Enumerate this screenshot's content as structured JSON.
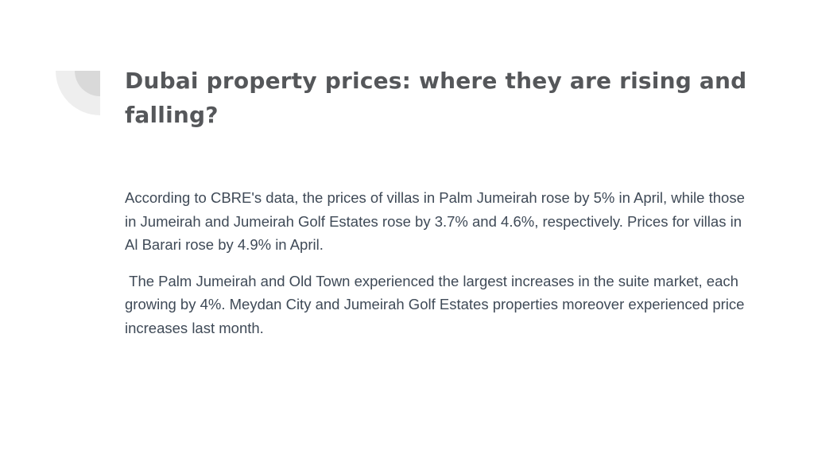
{
  "slide": {
    "title": "Dubai property prices: where they are rising and falling?",
    "paragraphs": [
      "According to CBRE's data, the prices of villas in Palm Jumeirah rose by 5% in April, while those in Jumeirah and Jumeirah Golf Estates rose by 3.7% and 4.6%, respectively. Prices for villas in Al Barari rose by 4.9% in April.",
      " The Palm Jumeirah and Old Town experienced the largest increases in the suite market, each growing by 4%. Meydan City and Jumeirah Golf Estates properties moreover experienced price increases last month."
    ],
    "decoration": {
      "outer_color": "#eeeeee",
      "inner_color": "#d9d9d9"
    }
  }
}
